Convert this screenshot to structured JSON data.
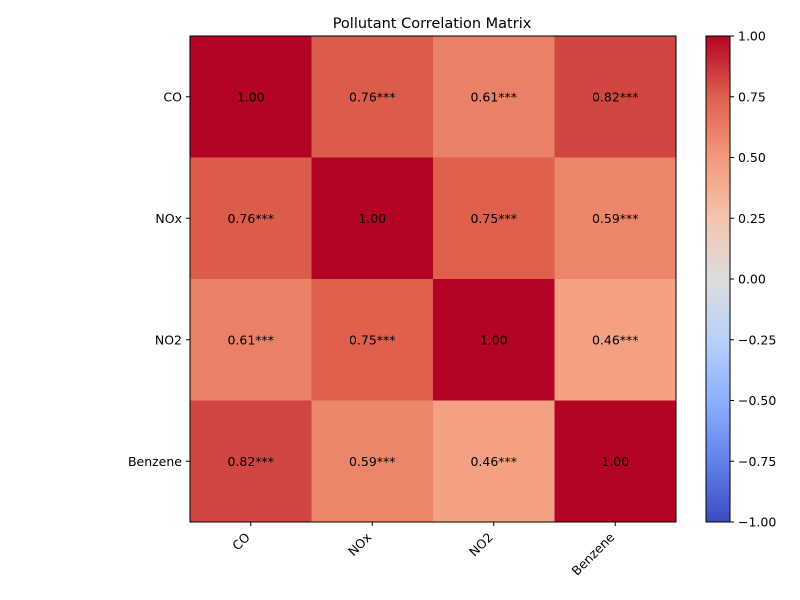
{
  "chart_data": {
    "type": "heatmap",
    "title": "Pollutant Correlation Matrix",
    "xlabel": "",
    "ylabel": "",
    "categories": [
      "CO",
      "NOx",
      "NO2",
      "Benzene"
    ],
    "values": [
      [
        1.0,
        0.76,
        0.61,
        0.82
      ],
      [
        0.76,
        1.0,
        0.75,
        0.59
      ],
      [
        0.61,
        0.75,
        1.0,
        0.46
      ],
      [
        0.82,
        0.59,
        0.46,
        1.0
      ]
    ],
    "labels": [
      [
        "1.00",
        "0.76***",
        "0.61***",
        "0.82***"
      ],
      [
        "0.76***",
        "1.00",
        "0.75***",
        "0.59***"
      ],
      [
        "0.61***",
        "0.75***",
        "1.00",
        "0.46***"
      ],
      [
        "0.82***",
        "0.59***",
        "0.46***",
        "1.00"
      ]
    ],
    "colormap": "coolwarm",
    "vmin": -1.0,
    "vmax": 1.0,
    "colorbar_ticks": [
      "-1.00",
      "-0.75",
      "-0.50",
      "-0.25",
      "0.00",
      "0.25",
      "0.50",
      "0.75",
      "1.00"
    ],
    "x_tick_rotation": 45,
    "grid": false
  }
}
